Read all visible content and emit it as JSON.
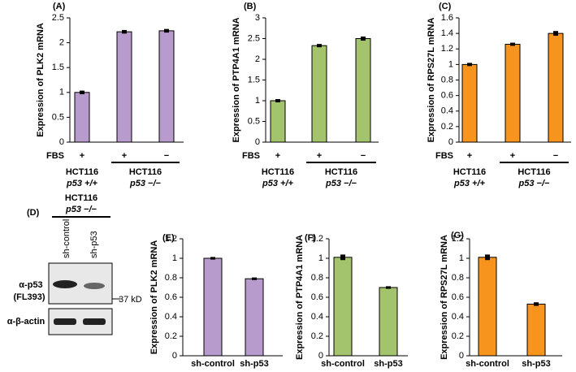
{
  "chart_data": [
    {
      "type": "bar",
      "label": "(A)",
      "y_label": "Expression of PLK2 mRNA",
      "x_label": "FBS",
      "categories": [
        "+",
        "+",
        "−"
      ],
      "values": [
        1.0,
        2.22,
        2.24
      ],
      "errors": [
        0.02,
        0.02,
        0.02
      ],
      "groups": [
        {
          "line": "HCT116",
          "genotype": "p53 +/+"
        },
        {
          "line": "HCT116",
          "genotype": "p53 −/−"
        }
      ],
      "color": "#b79bcc",
      "ylim": [
        0,
        2.5
      ],
      "yticks": [
        0,
        0.5,
        1,
        1.5,
        2,
        2.5
      ]
    },
    {
      "type": "bar",
      "label": "(B)",
      "y_label": "Expression of PTP4A1 mRNA",
      "x_label": "FBS",
      "categories": [
        "+",
        "+",
        "−"
      ],
      "values": [
        1.0,
        2.33,
        2.5
      ],
      "errors": [
        0.02,
        0.02,
        0.03
      ],
      "groups": [
        {
          "line": "HCT116",
          "genotype": "p53 +/+"
        },
        {
          "line": "HCT116",
          "genotype": "p53 −/−"
        }
      ],
      "color": "#a3c46c",
      "ylim": [
        0,
        3
      ],
      "yticks": [
        0,
        0.5,
        1,
        1.5,
        2,
        2.5,
        3
      ]
    },
    {
      "type": "bar",
      "label": "(C)",
      "y_label": "Expression of RPS27L mRNA",
      "x_label": "FBS",
      "categories": [
        "+",
        "+",
        "−"
      ],
      "values": [
        1.0,
        1.26,
        1.4
      ],
      "errors": [
        0.01,
        0.01,
        0.02
      ],
      "groups": [
        {
          "line": "HCT116",
          "genotype": "p53 +/+"
        },
        {
          "line": "HCT116",
          "genotype": "p53 −/−"
        }
      ],
      "color": "#f7941d",
      "ylim": [
        0,
        1.6
      ],
      "yticks": [
        0,
        0.2,
        0.4,
        0.6,
        0.8,
        1,
        1.2,
        1.4,
        1.6
      ]
    },
    {
      "type": "bar",
      "label": "(E)",
      "y_label": "Expression of PLK2 mRNA",
      "categories": [
        "sh-control",
        "sh-p53"
      ],
      "values": [
        1.0,
        0.79
      ],
      "errors": [
        0.005,
        0.005
      ],
      "color": "#b79bcc",
      "ylim": [
        0,
        1.2
      ],
      "yticks": [
        0,
        0.2,
        0.4,
        0.6,
        0.8,
        1,
        1.2
      ]
    },
    {
      "type": "bar",
      "label": "(F)",
      "y_label": "Expression of PTP4A1 mRNA",
      "categories": [
        "sh-control",
        "sh-p53"
      ],
      "values": [
        1.01,
        0.7
      ],
      "errors": [
        0.02,
        0.005
      ],
      "color": "#a3c46c",
      "ylim": [
        0,
        1.2
      ],
      "yticks": [
        0,
        0.2,
        0.4,
        0.6,
        0.8,
        1,
        1.2
      ]
    },
    {
      "type": "bar",
      "label": "(G)",
      "y_label": "Expression of RPS27L mRNA",
      "categories": [
        "sh-control",
        "sh-p53"
      ],
      "values": [
        1.01,
        0.53
      ],
      "errors": [
        0.02,
        0.01
      ],
      "color": "#f7941d",
      "ylim": [
        0,
        1.2
      ],
      "yticks": [
        0,
        0.2,
        0.4,
        0.6,
        0.8,
        1,
        1.2
      ]
    }
  ],
  "blot": {
    "label": "(D)",
    "line": "HCT116",
    "genotype": "p53 −/−",
    "lanes": [
      "sh-control",
      "sh-p53"
    ],
    "antibody": "α-p53",
    "clone": "(FL393)",
    "marker": "37 kD",
    "loading": "α-β-actin"
  }
}
